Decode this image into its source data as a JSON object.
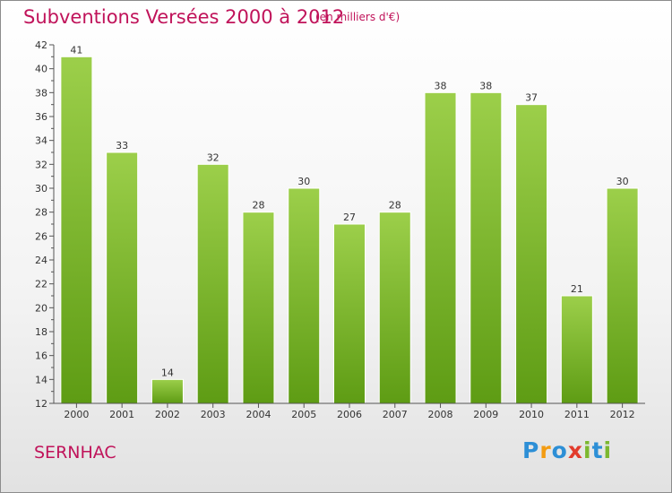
{
  "header": {
    "title": "Subventions Versées 2000 à 2012",
    "unit_note": "(en milliers d'€)"
  },
  "footer": {
    "commune": "SERNHAC",
    "logo_letters": [
      {
        "char": "P",
        "color": "#2d8fd6"
      },
      {
        "char": "r",
        "color": "#f39c12"
      },
      {
        "char": "o",
        "color": "#2d8fd6"
      },
      {
        "char": "x",
        "color": "#e23b2c"
      },
      {
        "char": "i",
        "color": "#7cb82f"
      },
      {
        "char": "t",
        "color": "#2d8fd6"
      },
      {
        "char": "i",
        "color": "#7cb82f"
      }
    ]
  },
  "colors": {
    "accent": "#c0135a",
    "bar_top": "#9ccf4a",
    "bar_bottom": "#5e9c14"
  },
  "chart_data": {
    "type": "bar",
    "title": "Subventions Versées 2000 à 2012",
    "subtitle": "(en milliers d'€)",
    "xlabel": "",
    "ylabel": "",
    "categories": [
      "2000",
      "2001",
      "2002",
      "2003",
      "2004",
      "2005",
      "2006",
      "2007",
      "2008",
      "2009",
      "2010",
      "2011",
      "2012"
    ],
    "values": [
      41,
      33,
      14,
      32,
      28,
      30,
      27,
      28,
      38,
      38,
      37,
      21,
      30
    ],
    "ylim": [
      12,
      42
    ],
    "yticks": [
      12,
      14,
      16,
      18,
      20,
      22,
      24,
      26,
      28,
      30,
      32,
      34,
      36,
      38,
      40,
      42
    ],
    "grid": false,
    "legend": "none"
  }
}
